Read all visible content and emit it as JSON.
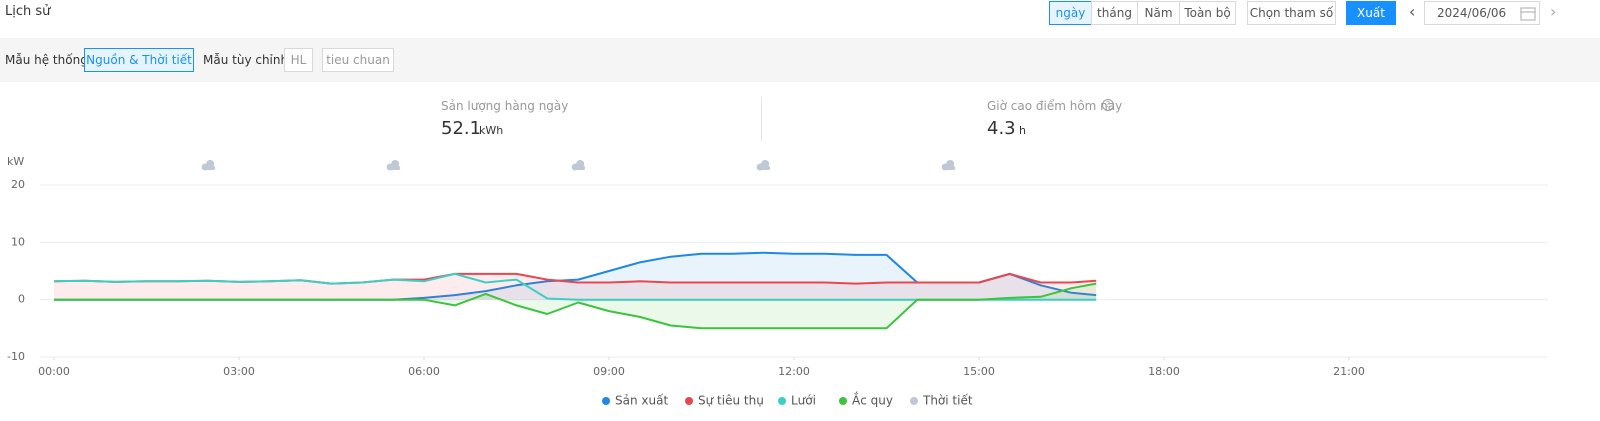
{
  "toolbar": {
    "title": "Lịch sử",
    "range_tabs": [
      "ngày",
      "tháng",
      "Năm",
      "Toàn bộ"
    ],
    "select_params": "Chọn tham số",
    "export": "Xuất",
    "date": "2024/06/06"
  },
  "templates": {
    "system_label": "Mẫu hệ thống:",
    "system_options": [
      "Nguồn & Thời tiết"
    ],
    "custom_label": "Mẫu tùy chỉnh:",
    "custom_options": [
      "HL",
      "tieu chuan"
    ]
  },
  "stats": [
    {
      "label": "Sản lượng hàng ngày",
      "value": "52.1",
      "unit": "kWh"
    },
    {
      "label": "Giờ cao điểm hôm nay",
      "value": "4.3",
      "unit": "h"
    }
  ],
  "chart_data": {
    "type": "line",
    "y_label": "kW",
    "ylim": [
      -10,
      20
    ],
    "yticks": [
      -10,
      0,
      10,
      20
    ],
    "grid": true,
    "xlim": [
      0,
      24
    ],
    "xticks": [
      {
        "value": 0,
        "label": "00:00"
      },
      {
        "value": 3,
        "label": "03:00"
      },
      {
        "value": 6,
        "label": "06:00"
      },
      {
        "value": 9,
        "label": "09:00"
      },
      {
        "value": 12,
        "label": "12:00"
      },
      {
        "value": 15,
        "label": "15:00"
      },
      {
        "value": 18,
        "label": "18:00"
      },
      {
        "value": 21,
        "label": "21:00"
      }
    ],
    "x": [
      0,
      0.5,
      1,
      1.5,
      2,
      2.5,
      3,
      3.5,
      4,
      4.5,
      5,
      5.5,
      6,
      6.5,
      7,
      7.5,
      8,
      8.5,
      9,
      9.5,
      10,
      10.5,
      11,
      11.5,
      12,
      12.5,
      13,
      13.5,
      14,
      14.5,
      15,
      15.5,
      16,
      16.5,
      16.9
    ],
    "series": [
      {
        "name": "Sản xuất",
        "color": "#1e88e5",
        "values": [
          0,
          0,
          0,
          0,
          0,
          0,
          0,
          0,
          0,
          0,
          0,
          0,
          0.3,
          0.8,
          1.5,
          2.5,
          3.2,
          3.5,
          5,
          6.5,
          7.5,
          8,
          8,
          8.2,
          8,
          8,
          7.8,
          7.8,
          3,
          3,
          3,
          4.5,
          2.5,
          1.2,
          0.8
        ]
      },
      {
        "name": "Sự tiêu thụ",
        "color": "#e8474f",
        "values": [
          3.2,
          3.3,
          3.1,
          3.2,
          3.2,
          3.3,
          3.1,
          3.2,
          3.4,
          2.8,
          3.0,
          3.5,
          3.5,
          4.5,
          4.5,
          4.5,
          3.5,
          3,
          3,
          3.2,
          3,
          3,
          3,
          3,
          3,
          3,
          2.8,
          3,
          3,
          3,
          3,
          4.5,
          3,
          3,
          3.3
        ]
      },
      {
        "name": "Lưới",
        "color": "#3ecfc4",
        "values": [
          3.2,
          3.3,
          3.1,
          3.2,
          3.2,
          3.3,
          3.1,
          3.2,
          3.4,
          2.8,
          3.0,
          3.5,
          3.2,
          4.5,
          3,
          3.5,
          0.2,
          0,
          0,
          0,
          0,
          0,
          0,
          0,
          0,
          0,
          0,
          0,
          0,
          0,
          0,
          0,
          0,
          0,
          0
        ]
      },
      {
        "name": "Ắc quy",
        "color": "#3cc43c",
        "values": [
          0,
          0,
          0,
          0,
          0,
          0,
          0,
          0,
          0,
          0,
          0,
          0,
          0,
          -1,
          1,
          -1,
          -2.5,
          -0.5,
          -2,
          -3,
          -4.5,
          -5,
          -5,
          -5,
          -5,
          -5,
          -5,
          -5,
          0,
          0,
          0,
          0.3,
          0.5,
          2,
          2.8
        ]
      }
    ],
    "weather": {
      "name": "Thời tiết",
      "color": "#c0c8d6",
      "x": [
        2.5,
        5.5,
        8.5,
        11.5,
        14.5
      ]
    }
  }
}
